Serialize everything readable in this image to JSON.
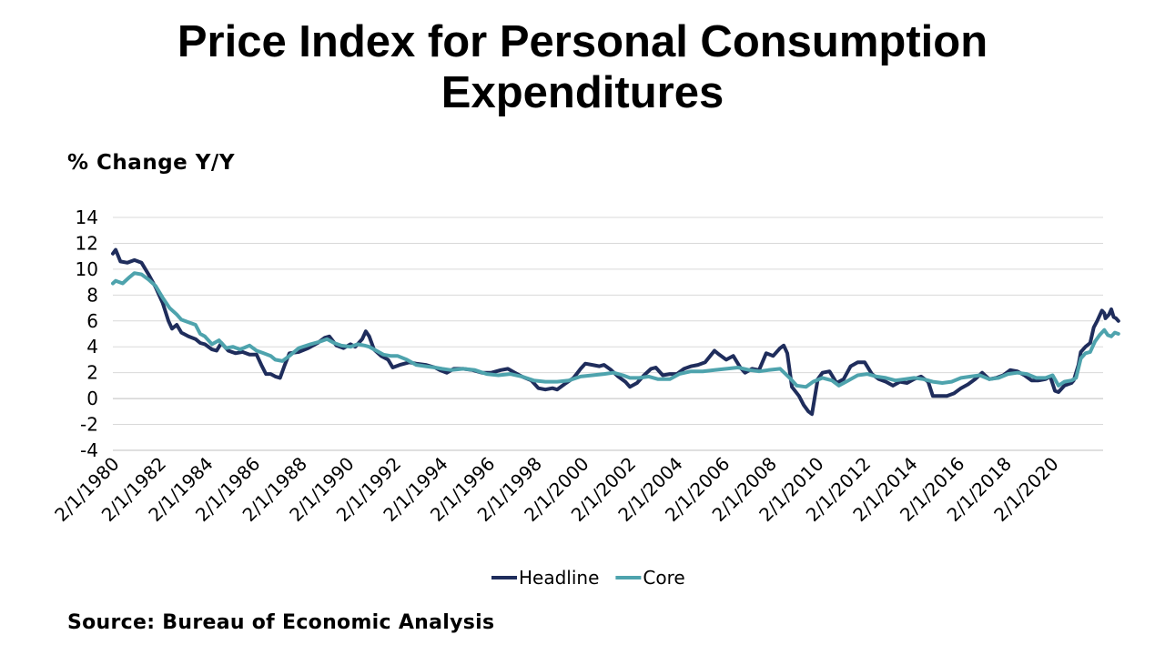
{
  "slide": {
    "title_line1": "Price Index for Personal Consumption",
    "title_line2": "Expenditures",
    "source": "Source: Bureau of Economic Analysis"
  },
  "chart_data": {
    "type": "line",
    "title": "Price Index for Personal Consumption Expenditures",
    "ylabel": "% Change Y/Y",
    "xlabel": "",
    "ylim": [
      -4,
      14
    ],
    "yticks": [
      -4,
      -2,
      0,
      2,
      4,
      6,
      8,
      10,
      12,
      14
    ],
    "xlim": [
      1980.08,
      2022.25
    ],
    "xticks": [
      "2/1/1980",
      "2/1/1982",
      "2/1/1984",
      "2/1/1986",
      "2/1/1988",
      "2/1/1990",
      "2/1/1992",
      "2/1/1994",
      "2/1/1996",
      "2/1/1998",
      "2/1/2000",
      "2/1/2002",
      "2/1/2004",
      "2/1/2006",
      "2/1/2008",
      "2/1/2010",
      "2/1/2012",
      "2/1/2014",
      "2/1/2016",
      "2/1/2018",
      "2/1/2020"
    ],
    "grid": true,
    "legend": "bottom",
    "colors": {
      "Headline": "#1f2d5c",
      "Core": "#4ea3ad",
      "grid": "#d9d9d9",
      "axis": "#bfbfbf"
    },
    "series": [
      {
        "name": "Headline",
        "points": [
          [
            1980.08,
            11.2
          ],
          [
            1980.2,
            11.5
          ],
          [
            1980.4,
            10.6
          ],
          [
            1980.7,
            10.5
          ],
          [
            1981.0,
            10.7
          ],
          [
            1981.3,
            10.5
          ],
          [
            1981.6,
            9.6
          ],
          [
            1981.9,
            8.6
          ],
          [
            1982.2,
            7.4
          ],
          [
            1982.45,
            6.0
          ],
          [
            1982.6,
            5.4
          ],
          [
            1982.8,
            5.7
          ],
          [
            1983.0,
            5.1
          ],
          [
            1983.3,
            4.8
          ],
          [
            1983.6,
            4.6
          ],
          [
            1983.8,
            4.3
          ],
          [
            1984.0,
            4.2
          ],
          [
            1984.3,
            3.8
          ],
          [
            1984.5,
            3.7
          ],
          [
            1984.7,
            4.3
          ],
          [
            1985.0,
            3.7
          ],
          [
            1985.3,
            3.5
          ],
          [
            1985.6,
            3.6
          ],
          [
            1985.9,
            3.4
          ],
          [
            1986.2,
            3.4
          ],
          [
            1986.4,
            2.6
          ],
          [
            1986.6,
            1.9
          ],
          [
            1986.8,
            1.9
          ],
          [
            1987.0,
            1.7
          ],
          [
            1987.2,
            1.6
          ],
          [
            1987.4,
            2.6
          ],
          [
            1987.6,
            3.5
          ],
          [
            1988.0,
            3.6
          ],
          [
            1988.4,
            3.9
          ],
          [
            1988.8,
            4.3
          ],
          [
            1989.1,
            4.7
          ],
          [
            1989.3,
            4.8
          ],
          [
            1989.6,
            4.1
          ],
          [
            1989.9,
            3.9
          ],
          [
            1990.2,
            4.2
          ],
          [
            1990.4,
            4.0
          ],
          [
            1990.7,
            4.6
          ],
          [
            1990.85,
            5.2
          ],
          [
            1991.0,
            4.8
          ],
          [
            1991.2,
            3.8
          ],
          [
            1991.5,
            3.3
          ],
          [
            1991.8,
            3.0
          ],
          [
            1992.0,
            2.4
          ],
          [
            1992.3,
            2.6
          ],
          [
            1992.7,
            2.8
          ],
          [
            1993.0,
            2.7
          ],
          [
            1993.4,
            2.6
          ],
          [
            1993.8,
            2.4
          ],
          [
            1994.0,
            2.2
          ],
          [
            1994.3,
            2.0
          ],
          [
            1994.6,
            2.3
          ],
          [
            1995.0,
            2.3
          ],
          [
            1995.4,
            2.2
          ],
          [
            1995.8,
            2.0
          ],
          [
            1996.2,
            2.0
          ],
          [
            1996.6,
            2.2
          ],
          [
            1996.9,
            2.3
          ],
          [
            1997.2,
            2.0
          ],
          [
            1997.5,
            1.7
          ],
          [
            1997.9,
            1.4
          ],
          [
            1998.2,
            0.8
          ],
          [
            1998.5,
            0.7
          ],
          [
            1998.8,
            0.8
          ],
          [
            1999.0,
            0.7
          ],
          [
            1999.3,
            1.1
          ],
          [
            1999.7,
            1.6
          ],
          [
            2000.0,
            2.3
          ],
          [
            2000.2,
            2.7
          ],
          [
            2000.5,
            2.6
          ],
          [
            2000.8,
            2.5
          ],
          [
            2001.0,
            2.6
          ],
          [
            2001.3,
            2.2
          ],
          [
            2001.6,
            1.7
          ],
          [
            2001.9,
            1.3
          ],
          [
            2002.1,
            0.9
          ],
          [
            2002.4,
            1.2
          ],
          [
            2002.7,
            1.8
          ],
          [
            2003.0,
            2.3
          ],
          [
            2003.2,
            2.4
          ],
          [
            2003.5,
            1.8
          ],
          [
            2003.8,
            1.9
          ],
          [
            2004.1,
            1.9
          ],
          [
            2004.4,
            2.3
          ],
          [
            2004.7,
            2.5
          ],
          [
            2005.0,
            2.6
          ],
          [
            2005.3,
            2.8
          ],
          [
            2005.7,
            3.7
          ],
          [
            2005.9,
            3.4
          ],
          [
            2006.2,
            3.0
          ],
          [
            2006.5,
            3.3
          ],
          [
            2006.8,
            2.4
          ],
          [
            2007.0,
            2.0
          ],
          [
            2007.3,
            2.3
          ],
          [
            2007.6,
            2.2
          ],
          [
            2007.9,
            3.5
          ],
          [
            2008.2,
            3.3
          ],
          [
            2008.5,
            3.9
          ],
          [
            2008.65,
            4.1
          ],
          [
            2008.8,
            3.5
          ],
          [
            2009.0,
            0.9
          ],
          [
            2009.3,
            0.2
          ],
          [
            2009.5,
            -0.5
          ],
          [
            2009.7,
            -1.0
          ],
          [
            2009.85,
            -1.2
          ],
          [
            2010.1,
            1.5
          ],
          [
            2010.3,
            2.0
          ],
          [
            2010.6,
            2.1
          ],
          [
            2010.9,
            1.2
          ],
          [
            2011.2,
            1.5
          ],
          [
            2011.5,
            2.5
          ],
          [
            2011.8,
            2.8
          ],
          [
            2012.1,
            2.8
          ],
          [
            2012.4,
            1.9
          ],
          [
            2012.7,
            1.5
          ],
          [
            2013.0,
            1.3
          ],
          [
            2013.3,
            1.0
          ],
          [
            2013.6,
            1.3
          ],
          [
            2013.9,
            1.2
          ],
          [
            2014.2,
            1.5
          ],
          [
            2014.5,
            1.7
          ],
          [
            2014.8,
            1.3
          ],
          [
            2015.0,
            0.2
          ],
          [
            2015.3,
            0.2
          ],
          [
            2015.6,
            0.2
          ],
          [
            2015.9,
            0.4
          ],
          [
            2016.2,
            0.8
          ],
          [
            2016.5,
            1.1
          ],
          [
            2016.8,
            1.5
          ],
          [
            2017.1,
            2.0
          ],
          [
            2017.4,
            1.5
          ],
          [
            2017.7,
            1.6
          ],
          [
            2018.0,
            1.8
          ],
          [
            2018.3,
            2.2
          ],
          [
            2018.6,
            2.1
          ],
          [
            2018.9,
            1.8
          ],
          [
            2019.2,
            1.4
          ],
          [
            2019.5,
            1.4
          ],
          [
            2019.8,
            1.5
          ],
          [
            2020.0,
            1.7
          ],
          [
            2020.2,
            0.6
          ],
          [
            2020.35,
            0.5
          ],
          [
            2020.6,
            1.0
          ],
          [
            2020.9,
            1.2
          ],
          [
            2021.0,
            1.4
          ],
          [
            2021.2,
            2.6
          ],
          [
            2021.3,
            3.6
          ],
          [
            2021.5,
            4.0
          ],
          [
            2021.7,
            4.3
          ],
          [
            2021.85,
            5.5
          ],
          [
            2022.0,
            6.0
          ],
          [
            2022.1,
            6.4
          ],
          [
            2022.2,
            6.8
          ],
          [
            2022.3,
            6.6
          ],
          [
            2022.35,
            6.2
          ],
          [
            2022.5,
            6.5
          ],
          [
            2022.6,
            6.9
          ],
          [
            2022.7,
            6.3
          ],
          [
            2022.8,
            6.2
          ],
          [
            2022.9,
            6.0
          ]
        ]
      },
      {
        "name": "Core",
        "points": [
          [
            1980.08,
            8.9
          ],
          [
            1980.2,
            9.1
          ],
          [
            1980.5,
            8.9
          ],
          [
            1980.8,
            9.4
          ],
          [
            1981.0,
            9.7
          ],
          [
            1981.3,
            9.6
          ],
          [
            1981.6,
            9.2
          ],
          [
            1981.9,
            8.7
          ],
          [
            1982.2,
            7.8
          ],
          [
            1982.5,
            7.0
          ],
          [
            1982.8,
            6.5
          ],
          [
            1983.0,
            6.1
          ],
          [
            1983.3,
            5.9
          ],
          [
            1983.6,
            5.7
          ],
          [
            1983.8,
            5.0
          ],
          [
            1984.0,
            4.8
          ],
          [
            1984.3,
            4.2
          ],
          [
            1984.6,
            4.5
          ],
          [
            1984.9,
            3.9
          ],
          [
            1985.2,
            4.0
          ],
          [
            1985.5,
            3.8
          ],
          [
            1985.9,
            4.1
          ],
          [
            1986.2,
            3.7
          ],
          [
            1986.5,
            3.5
          ],
          [
            1986.8,
            3.3
          ],
          [
            1987.0,
            3.0
          ],
          [
            1987.3,
            2.9
          ],
          [
            1987.6,
            3.3
          ],
          [
            1988.0,
            3.9
          ],
          [
            1988.5,
            4.2
          ],
          [
            1988.9,
            4.4
          ],
          [
            1989.2,
            4.6
          ],
          [
            1989.5,
            4.3
          ],
          [
            1989.8,
            4.1
          ],
          [
            1990.2,
            4.0
          ],
          [
            1990.5,
            4.2
          ],
          [
            1990.8,
            4.1
          ],
          [
            1991.0,
            4.0
          ],
          [
            1991.3,
            3.7
          ],
          [
            1991.6,
            3.4
          ],
          [
            1991.9,
            3.3
          ],
          [
            1992.2,
            3.3
          ],
          [
            1992.6,
            3.0
          ],
          [
            1993.0,
            2.6
          ],
          [
            1993.4,
            2.5
          ],
          [
            1993.8,
            2.4
          ],
          [
            1994.1,
            2.3
          ],
          [
            1994.5,
            2.2
          ],
          [
            1995.0,
            2.3
          ],
          [
            1995.5,
            2.2
          ],
          [
            1996.0,
            1.9
          ],
          [
            1996.5,
            1.8
          ],
          [
            1997.0,
            1.9
          ],
          [
            1997.5,
            1.7
          ],
          [
            1998.0,
            1.4
          ],
          [
            1998.5,
            1.3
          ],
          [
            1999.0,
            1.3
          ],
          [
            1999.5,
            1.4
          ],
          [
            2000.0,
            1.7
          ],
          [
            2000.5,
            1.8
          ],
          [
            2001.0,
            1.9
          ],
          [
            2001.4,
            2.0
          ],
          [
            2001.8,
            1.8
          ],
          [
            2002.1,
            1.6
          ],
          [
            2002.5,
            1.6
          ],
          [
            2002.9,
            1.7
          ],
          [
            2003.3,
            1.5
          ],
          [
            2003.8,
            1.5
          ],
          [
            2004.2,
            1.9
          ],
          [
            2004.7,
            2.1
          ],
          [
            2005.2,
            2.1
          ],
          [
            2005.7,
            2.2
          ],
          [
            2006.2,
            2.3
          ],
          [
            2006.7,
            2.4
          ],
          [
            2007.2,
            2.2
          ],
          [
            2007.6,
            2.1
          ],
          [
            2008.0,
            2.2
          ],
          [
            2008.5,
            2.3
          ],
          [
            2008.9,
            1.6
          ],
          [
            2009.2,
            1.0
          ],
          [
            2009.6,
            0.9
          ],
          [
            2009.9,
            1.3
          ],
          [
            2010.3,
            1.6
          ],
          [
            2010.7,
            1.4
          ],
          [
            2011.0,
            1.0
          ],
          [
            2011.4,
            1.4
          ],
          [
            2011.8,
            1.8
          ],
          [
            2012.2,
            1.9
          ],
          [
            2012.6,
            1.7
          ],
          [
            2013.0,
            1.6
          ],
          [
            2013.4,
            1.4
          ],
          [
            2013.8,
            1.5
          ],
          [
            2014.2,
            1.6
          ],
          [
            2014.6,
            1.5
          ],
          [
            2015.0,
            1.3
          ],
          [
            2015.4,
            1.2
          ],
          [
            2015.8,
            1.3
          ],
          [
            2016.2,
            1.6
          ],
          [
            2016.6,
            1.7
          ],
          [
            2017.0,
            1.8
          ],
          [
            2017.4,
            1.5
          ],
          [
            2017.8,
            1.6
          ],
          [
            2018.2,
            1.9
          ],
          [
            2018.6,
            2.0
          ],
          [
            2019.0,
            1.9
          ],
          [
            2019.4,
            1.6
          ],
          [
            2019.8,
            1.6
          ],
          [
            2020.1,
            1.8
          ],
          [
            2020.35,
            1.0
          ],
          [
            2020.6,
            1.3
          ],
          [
            2020.9,
            1.4
          ],
          [
            2021.1,
            1.6
          ],
          [
            2021.3,
            3.1
          ],
          [
            2021.5,
            3.5
          ],
          [
            2021.7,
            3.6
          ],
          [
            2021.9,
            4.4
          ],
          [
            2022.1,
            4.9
          ],
          [
            2022.3,
            5.3
          ],
          [
            2022.45,
            4.9
          ],
          [
            2022.6,
            4.8
          ],
          [
            2022.75,
            5.1
          ],
          [
            2022.9,
            5.0
          ]
        ]
      }
    ]
  }
}
